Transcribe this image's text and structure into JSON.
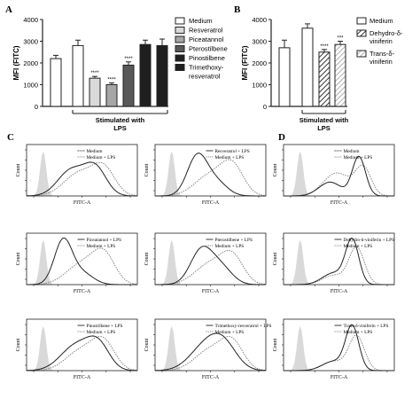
{
  "panel_labels": [
    "A",
    "B",
    "C",
    "D"
  ],
  "colors": {
    "axis": "#222222",
    "gray_fill": "#d9d9d9",
    "mid_gray": "#a6a6a6",
    "dark_gray": "#595959",
    "black": "#1f1f1f",
    "white": "#ffffff"
  },
  "chart_data": [
    {
      "panel": "A",
      "type": "bar",
      "ylabel": "MFI (FITC)",
      "ylim": [
        0,
        4000
      ],
      "yticks": [
        "0",
        "1000",
        "2000",
        "3000",
        "4000"
      ],
      "x": [
        "Medium",
        "Medium",
        "Resveratrol",
        "Piceatannol",
        "Pterostilbene",
        "Pinostilbene",
        "Trimethoxy-resveratrol"
      ],
      "values": [
        2200,
        2800,
        1300,
        1000,
        1900,
        2850,
        2800
      ],
      "errors": [
        150,
        250,
        80,
        80,
        150,
        200,
        300
      ],
      "fills": [
        "#ffffff",
        "#ffffff",
        "#d9d9d9",
        "#a6a6a6",
        "#595959",
        "#1f1f1f",
        "#1f1f1f"
      ],
      "significance": [
        "",
        "",
        "****",
        "****",
        "****",
        "",
        ""
      ],
      "group_label": [
        "Stimulated with",
        "LPS"
      ],
      "legend": [
        "Medium",
        "Resveratrol",
        "Piceatannol",
        "Pterostilbene",
        "Pinostilbene",
        "Trimethoxy-",
        "resveratrol"
      ]
    },
    {
      "panel": "B",
      "type": "bar",
      "ylabel": "MFI (FITC)",
      "ylim": [
        0,
        4000
      ],
      "yticks": [
        "0",
        "1000",
        "2000",
        "3000",
        "4000"
      ],
      "x": [
        "Medium",
        "Medium",
        "Dehydro-δ-viniferin",
        "Trans-δ-viniferin"
      ],
      "values": [
        2700,
        3600,
        2500,
        2850
      ],
      "errors": [
        350,
        200,
        120,
        150
      ],
      "fills": [
        "#ffffff",
        "#ffffff",
        "hatch-dark",
        "hatch-light"
      ],
      "significance": [
        "",
        "",
        "****",
        "***"
      ],
      "group_label": [
        "Stimulated with",
        "LPS"
      ],
      "legend": [
        "Medium",
        "Dehydro-δ-",
        "viniferin",
        "Trans-δ-",
        "viniferin"
      ]
    },
    {
      "panel": "C/D",
      "type": "line",
      "xlabel": "FITC-A",
      "ylabel": "Count",
      "histograms": [
        {
          "legend": [
            "Medium",
            "Medium + LPS"
          ]
        },
        {
          "legend": [
            "Resveratrol + LPS",
            "Medium + LPS"
          ]
        },
        {
          "legend": [
            "Medium",
            "Medium + LPS"
          ]
        },
        {
          "legend": [
            "Piceatannol + LPS",
            "Medium + LPS"
          ]
        },
        {
          "legend": [
            "Pterostilbene + LPS",
            "Medium + LPS"
          ]
        },
        {
          "legend": [
            "Dehydro-δ-viniferin + LPS",
            "Medium + LPS"
          ]
        },
        {
          "legend": [
            "Pinostilbene + LPS",
            "Medium + LPS"
          ]
        },
        {
          "legend": [
            "Trimethoxy-resveratrol + LPS",
            "Medium + LPS"
          ]
        },
        {
          "legend": [
            "Trans-δ-viniferin + LPS",
            "Medium + LPS"
          ]
        }
      ]
    }
  ]
}
